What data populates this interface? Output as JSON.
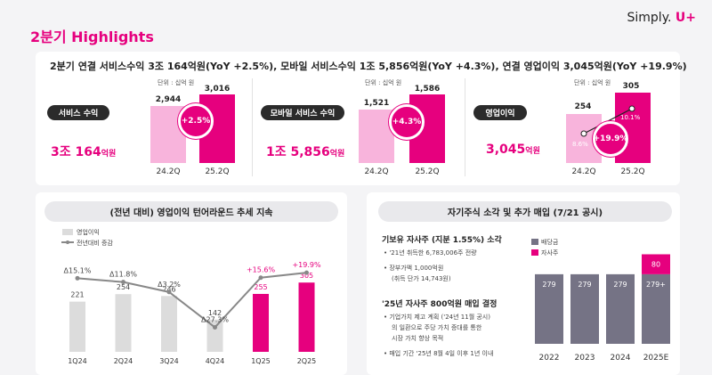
{
  "header": {
    "title": "2분기 Highlights",
    "brand_text": "Simply.",
    "brand_accent": "U+"
  },
  "summary": {
    "headline": "2분기 연결 서비스수익 3조 164억원(YoY +2.5%), 모바일 서비스수익 1조 5,856억원(YoY +4.3%), 연결 영업이익 3,045억원(YoY +19.9%)",
    "unit": "단위 : 십억 원",
    "metrics": [
      {
        "label": "서비스 수익",
        "big_main": "3조 164",
        "big_unit": "억원",
        "prev": "2,944",
        "curr": "3,016",
        "growth": "+2.5%",
        "prev_q": "24.2Q",
        "curr_q": "25.2Q",
        "prev_value": 2944,
        "curr_value": 3016
      },
      {
        "label": "모바일 서비스 수익",
        "big_main": "1조 5,856",
        "big_unit": "억원",
        "prev": "1,521",
        "curr": "1,586",
        "growth": "+4.3%",
        "prev_q": "24.2Q",
        "curr_q": "25.2Q",
        "prev_value": 1521,
        "curr_value": 1586
      },
      {
        "label": "영업이익",
        "big_main": "3,045",
        "big_unit": "억원",
        "prev": "254",
        "curr": "305",
        "growth": "+19.9%",
        "prev_q": "24.2Q",
        "curr_q": "25.2Q",
        "prev_margin": "8.6%",
        "curr_margin": "10.1%",
        "prev_value": 254,
        "curr_value": 305
      }
    ]
  },
  "left_panel": {
    "title": "(전년 대비) 영업이익 턴어라운드 추세 지속",
    "legend_bar": "영업이익",
    "legend_line": "전년대비 증감"
  },
  "right_panel": {
    "title": "자기주식 소각 및 추가 매입 (7/21 공시)",
    "sec1_title": "기보유 자사주 (지분 1.55%) 소각",
    "sec1_items": [
      "'21년 취득한 6,783,006주 전량",
      "장부가액 1,000억원"
    ],
    "sec1_sub": "(취득 단가 14,743원)",
    "sec2_title": "'25년 자사주 800억원 매입 결정",
    "sec2_item1_lines": [
      "기업가치 제고 계획 ('24년 11월 공시)",
      "의 일환으로 주당 가치 증대를 통한",
      "시장 가치 향상 목적"
    ],
    "sec2_item2": "매입 기간 '25년 8월 4일 이후 1년 이내",
    "legend_dividend": "배당금",
    "legend_buyback": "자사주"
  },
  "colors": {
    "accent": "#e6007e",
    "light_pink": "#f8b4dc",
    "grey_bar": "#dcdcdc",
    "dark_line": "#888888",
    "dividend": "#757385"
  },
  "chart_data": [
    {
      "type": "bar",
      "categories": [
        "1Q24",
        "2Q24",
        "3Q24",
        "4Q24",
        "1Q25",
        "2Q25"
      ],
      "series": [
        {
          "name": "영업이익",
          "values": [
            221,
            254,
            246,
            142,
            255,
            305
          ],
          "labels": [
            "221",
            "254",
            "246",
            "142",
            "255",
            "305"
          ]
        },
        {
          "name": "전년대비 증감",
          "values": [
            15.1,
            11.8,
            3.2,
            -27.3,
            15.6,
            19.9
          ],
          "labels": [
            "Δ15.1%",
            "Δ11.8%",
            "Δ3.2%",
            "Δ27.3%",
            "+15.6%",
            "+19.9%"
          ]
        }
      ]
    },
    {
      "type": "bar",
      "categories": [
        "2022",
        "2023",
        "2024",
        "2025E"
      ],
      "series": [
        {
          "name": "배당금",
          "values": [
            279,
            279,
            279,
            279
          ],
          "labels": [
            "279",
            "279",
            "279",
            "279+"
          ]
        },
        {
          "name": "자사주",
          "values": [
            0,
            0,
            0,
            80
          ],
          "labels": [
            "",
            "",
            "",
            "80"
          ]
        }
      ]
    }
  ]
}
